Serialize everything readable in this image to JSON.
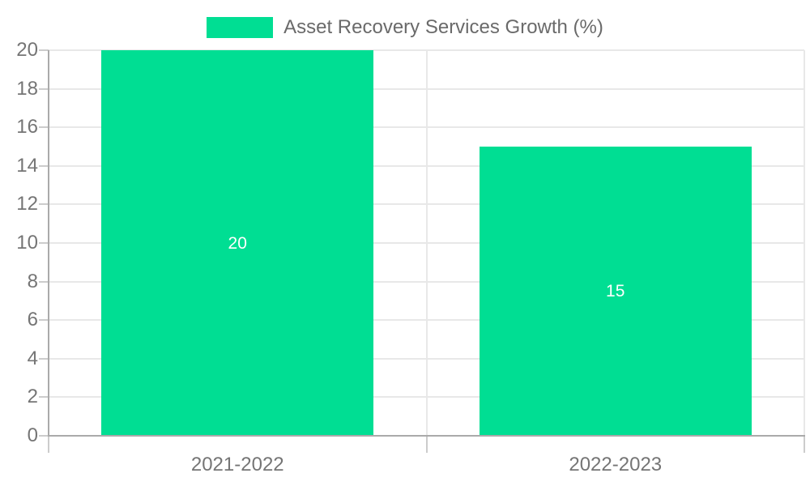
{
  "chart_data": {
    "type": "bar",
    "legend_label": "Asset Recovery Services Growth (%)",
    "legend_position": "top",
    "categories": [
      "2021-2022",
      "2022-2023"
    ],
    "series": [
      {
        "name": "Asset Recovery Services Growth (%)",
        "values": [
          20,
          15
        ],
        "color": "#00de93"
      }
    ],
    "data_labels": [
      "20",
      "15"
    ],
    "title": "",
    "xlabel": "",
    "ylabel": "",
    "ylim": [
      0,
      20
    ],
    "ytick_step": 2,
    "yticks": [
      0,
      2,
      4,
      6,
      8,
      10,
      12,
      14,
      16,
      18,
      20
    ],
    "grid": true,
    "bar_width_fraction": 0.72,
    "colors": {
      "bar": "#00de93",
      "axis_line": "#aaaaaa",
      "gridline": "#e8e8e8",
      "tick_mark": "#cccccc",
      "axis_label_text": "#757575",
      "legend_text": "#6a6a6a",
      "data_label_text": "#ffffff",
      "background": "#ffffff"
    }
  }
}
